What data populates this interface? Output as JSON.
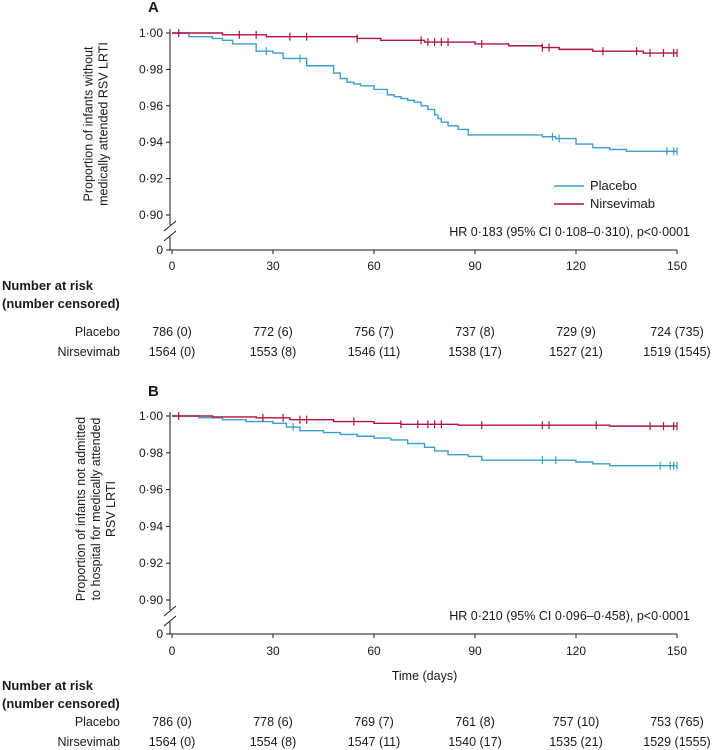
{
  "colors": {
    "placebo": "#3a9fcc",
    "nirsevimab": "#b0123e",
    "text": "#1a1a1a"
  },
  "chart_data": [
    {
      "type": "line",
      "panel": "A",
      "ylabel_lines": [
        "Proportion of infants without",
        "medically attended RSV LRTI"
      ],
      "xlabel": "",
      "x_ticks": [
        "0",
        "30",
        "60",
        "90",
        "120",
        "150"
      ],
      "y_ticks": [
        "1·00",
        "0·98",
        "0·96",
        "0·94",
        "0·92",
        "0·90"
      ],
      "y_zero": "0",
      "xlim": [
        0,
        150
      ],
      "ylim": [
        0.89,
        1.0
      ],
      "annotation": "HR 0·183 (95% CI 0·108–0·310), p<0·0001",
      "legend": [
        "Placebo",
        "Nirsevimab"
      ],
      "legend_position": "lower-right",
      "series": [
        {
          "name": "Placebo",
          "color_key": "placebo",
          "x": [
            0,
            5,
            12,
            15,
            18,
            25,
            30,
            33,
            40,
            47,
            48,
            50,
            52,
            54,
            56,
            60,
            64,
            66,
            68,
            70,
            72,
            74,
            76,
            78,
            79,
            80,
            82,
            85,
            88,
            96,
            104,
            110,
            114,
            120,
            125,
            130,
            135,
            150
          ],
          "y": [
            1.0,
            0.998,
            0.997,
            0.996,
            0.994,
            0.99,
            0.989,
            0.986,
            0.982,
            0.982,
            0.978,
            0.975,
            0.973,
            0.972,
            0.971,
            0.969,
            0.966,
            0.965,
            0.964,
            0.963,
            0.962,
            0.96,
            0.958,
            0.955,
            0.953,
            0.951,
            0.949,
            0.947,
            0.944,
            0.944,
            0.944,
            0.943,
            0.942,
            0.939,
            0.937,
            0.936,
            0.935,
            0.935
          ],
          "censor_x": [
            28,
            38,
            113,
            115,
            147,
            149,
            150
          ]
        },
        {
          "name": "Nirsevimab",
          "color_key": "nirsevimab",
          "x": [
            0,
            15,
            28,
            45,
            55,
            62,
            75,
            90,
            100,
            105,
            110,
            115,
            120,
            125,
            130,
            140,
            150
          ],
          "y": [
            1.0,
            0.999,
            0.998,
            0.998,
            0.997,
            0.996,
            0.995,
            0.994,
            0.993,
            0.993,
            0.992,
            0.991,
            0.991,
            0.99,
            0.99,
            0.989,
            0.989
          ],
          "censor_x": [
            2,
            20,
            25,
            35,
            40,
            55,
            74,
            76,
            78,
            80,
            82,
            92,
            110,
            112,
            128,
            138,
            142,
            146,
            149,
            150
          ]
        }
      ],
      "risk_table": {
        "title_lines": [
          "Number at risk",
          "(number censored)"
        ],
        "rows": [
          {
            "label": "Placebo",
            "values": [
              "786 (0)",
              "772 (6)",
              "756 (7)",
              "737 (8)",
              "729 (9)",
              "724 (735)"
            ]
          },
          {
            "label": "Nirsevimab",
            "values": [
              "1564 (0)",
              "1553 (8)",
              "1546 (11)",
              "1538 (17)",
              "1527 (21)",
              "1519 (1545)"
            ]
          }
        ]
      }
    },
    {
      "type": "line",
      "panel": "B",
      "ylabel_lines": [
        "Proportion of infants not admitted",
        "to hospital for medically attended",
        "RSV LRTI"
      ],
      "xlabel": "Time (days)",
      "x_ticks": [
        "0",
        "30",
        "60",
        "90",
        "120",
        "150"
      ],
      "y_ticks": [
        "1·00",
        "0·98",
        "0·96",
        "0·94",
        "0·92",
        "0·90"
      ],
      "y_zero": "0",
      "xlim": [
        0,
        150
      ],
      "ylim": [
        0.89,
        1.0
      ],
      "annotation": "HR 0·210 (95% CI 0·096–0·458), p<0·0001",
      "legend": [],
      "series": [
        {
          "name": "Placebo",
          "color_key": "placebo",
          "x": [
            0,
            8,
            15,
            22,
            30,
            34,
            38,
            45,
            50,
            55,
            60,
            65,
            70,
            75,
            78,
            82,
            88,
            92,
            100,
            110,
            120,
            125,
            130,
            150
          ],
          "y": [
            1.0,
            0.999,
            0.998,
            0.997,
            0.996,
            0.994,
            0.992,
            0.991,
            0.99,
            0.989,
            0.988,
            0.987,
            0.985,
            0.983,
            0.981,
            0.979,
            0.978,
            0.976,
            0.976,
            0.976,
            0.975,
            0.974,
            0.973,
            0.973
          ],
          "censor_x": [
            36,
            110,
            114,
            145,
            148,
            149,
            150
          ]
        },
        {
          "name": "Nirsevimab",
          "color_key": "nirsevimab",
          "x": [
            0,
            12,
            25,
            35,
            48,
            60,
            68,
            85,
            100,
            130,
            150
          ],
          "y": [
            1.0,
            0.9995,
            0.999,
            0.998,
            0.997,
            0.996,
            0.9955,
            0.995,
            0.995,
            0.9945,
            0.9945
          ],
          "censor_x": [
            2,
            27,
            33,
            38,
            40,
            54,
            68,
            73,
            76,
            78,
            80,
            92,
            110,
            112,
            126,
            142,
            146,
            149,
            150
          ]
        }
      ],
      "risk_table": {
        "title_lines": [
          "Number at risk",
          "(number censored)"
        ],
        "rows": [
          {
            "label": "Placebo",
            "values": [
              "786 (0)",
              "778 (6)",
              "769 (7)",
              "761 (8)",
              "757 (10)",
              "753 (765)"
            ]
          },
          {
            "label": "Nirsevimab",
            "values": [
              "1564 (0)",
              "1554 (8)",
              "1547 (11)",
              "1540 (17)",
              "1535 (21)",
              "1529 (1555)"
            ]
          }
        ]
      }
    }
  ]
}
